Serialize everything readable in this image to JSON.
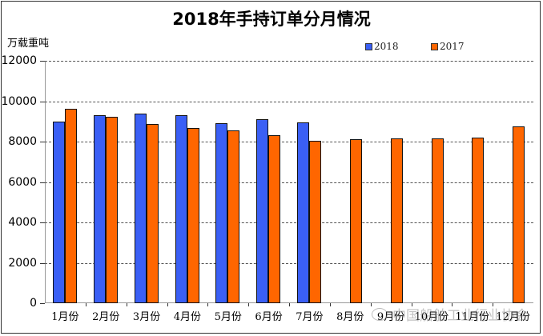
{
  "chart_data": {
    "type": "bar",
    "title": "2018年手持订单分月情况",
    "ylabel": "万载重吨",
    "xlabel": "",
    "ylim": [
      0,
      12000
    ],
    "yticks": [
      0,
      2000,
      4000,
      6000,
      8000,
      10000,
      12000
    ],
    "grid": true,
    "legend_position": "top-right",
    "categories": [
      "1月份",
      "2月份",
      "3月份",
      "4月份",
      "5月份",
      "6月份",
      "7月份",
      "8月份",
      "9月份",
      "10月份",
      "11月份",
      "12月份"
    ],
    "series": [
      {
        "name": "2018",
        "color": "#3a5ff5",
        "values": [
          9000,
          9300,
          9380,
          9300,
          8900,
          9100,
          8960,
          null,
          null,
          null,
          null,
          null
        ]
      },
      {
        "name": "2017",
        "color": "#ff6600",
        "values": [
          9630,
          9230,
          8880,
          8670,
          8540,
          8300,
          8040,
          8120,
          8145,
          8145,
          8200,
          8740
        ]
      }
    ]
  },
  "watermark": "中国船舶工业行业协会"
}
